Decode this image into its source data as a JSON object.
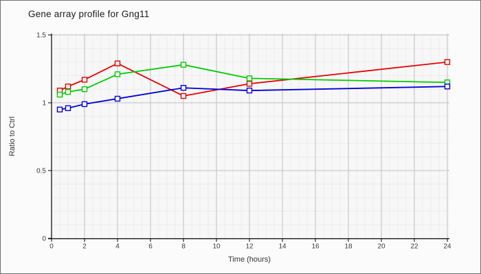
{
  "panel": {
    "background": "#fbfbfb",
    "border_color": "#6e6e6e"
  },
  "chart_data": {
    "type": "line",
    "title": "Gene array profile for Gng11",
    "xlabel": "Time (hours)",
    "ylabel": "Ratio to Ctrl",
    "x": [
      0.5,
      1,
      2,
      4,
      8,
      12,
      24
    ],
    "series": [
      {
        "name": "red",
        "color": "#e60000",
        "values": [
          1.09,
          1.12,
          1.17,
          1.29,
          1.05,
          1.14,
          1.3
        ]
      },
      {
        "name": "green",
        "color": "#00cc00",
        "values": [
          1.06,
          1.08,
          1.1,
          1.21,
          1.28,
          1.18,
          1.15
        ]
      },
      {
        "name": "blue",
        "color": "#0000dd",
        "values": [
          0.95,
          0.96,
          0.99,
          1.03,
          1.11,
          1.09,
          1.12
        ]
      }
    ],
    "xlim": [
      0,
      24
    ],
    "ylim": [
      0,
      1.5
    ],
    "x_major_ticks": [
      0,
      2,
      4,
      6,
      8,
      10,
      12,
      14,
      16,
      18,
      20,
      22,
      24
    ],
    "x_tick_labels": [
      "0",
      "2",
      "4",
      "6",
      "8",
      "10",
      "12",
      "14",
      "16",
      "18",
      "20",
      "22",
      "24"
    ],
    "y_major_ticks": [
      0,
      0.5,
      1,
      1.5
    ],
    "y_tick_labels": [
      "0",
      "0.5",
      "1",
      "1.5"
    ],
    "x_minor_step": 0.5,
    "y_minor_step": 0.1,
    "grid": true,
    "legend_position": "none",
    "marker": "hollow-square",
    "colors": {
      "plot_background": "#f7f7f7",
      "minor_grid": "#ececec",
      "major_grid": "#bfbfbf",
      "axis": "#000000",
      "tick_text": "#3a3a3a"
    }
  }
}
